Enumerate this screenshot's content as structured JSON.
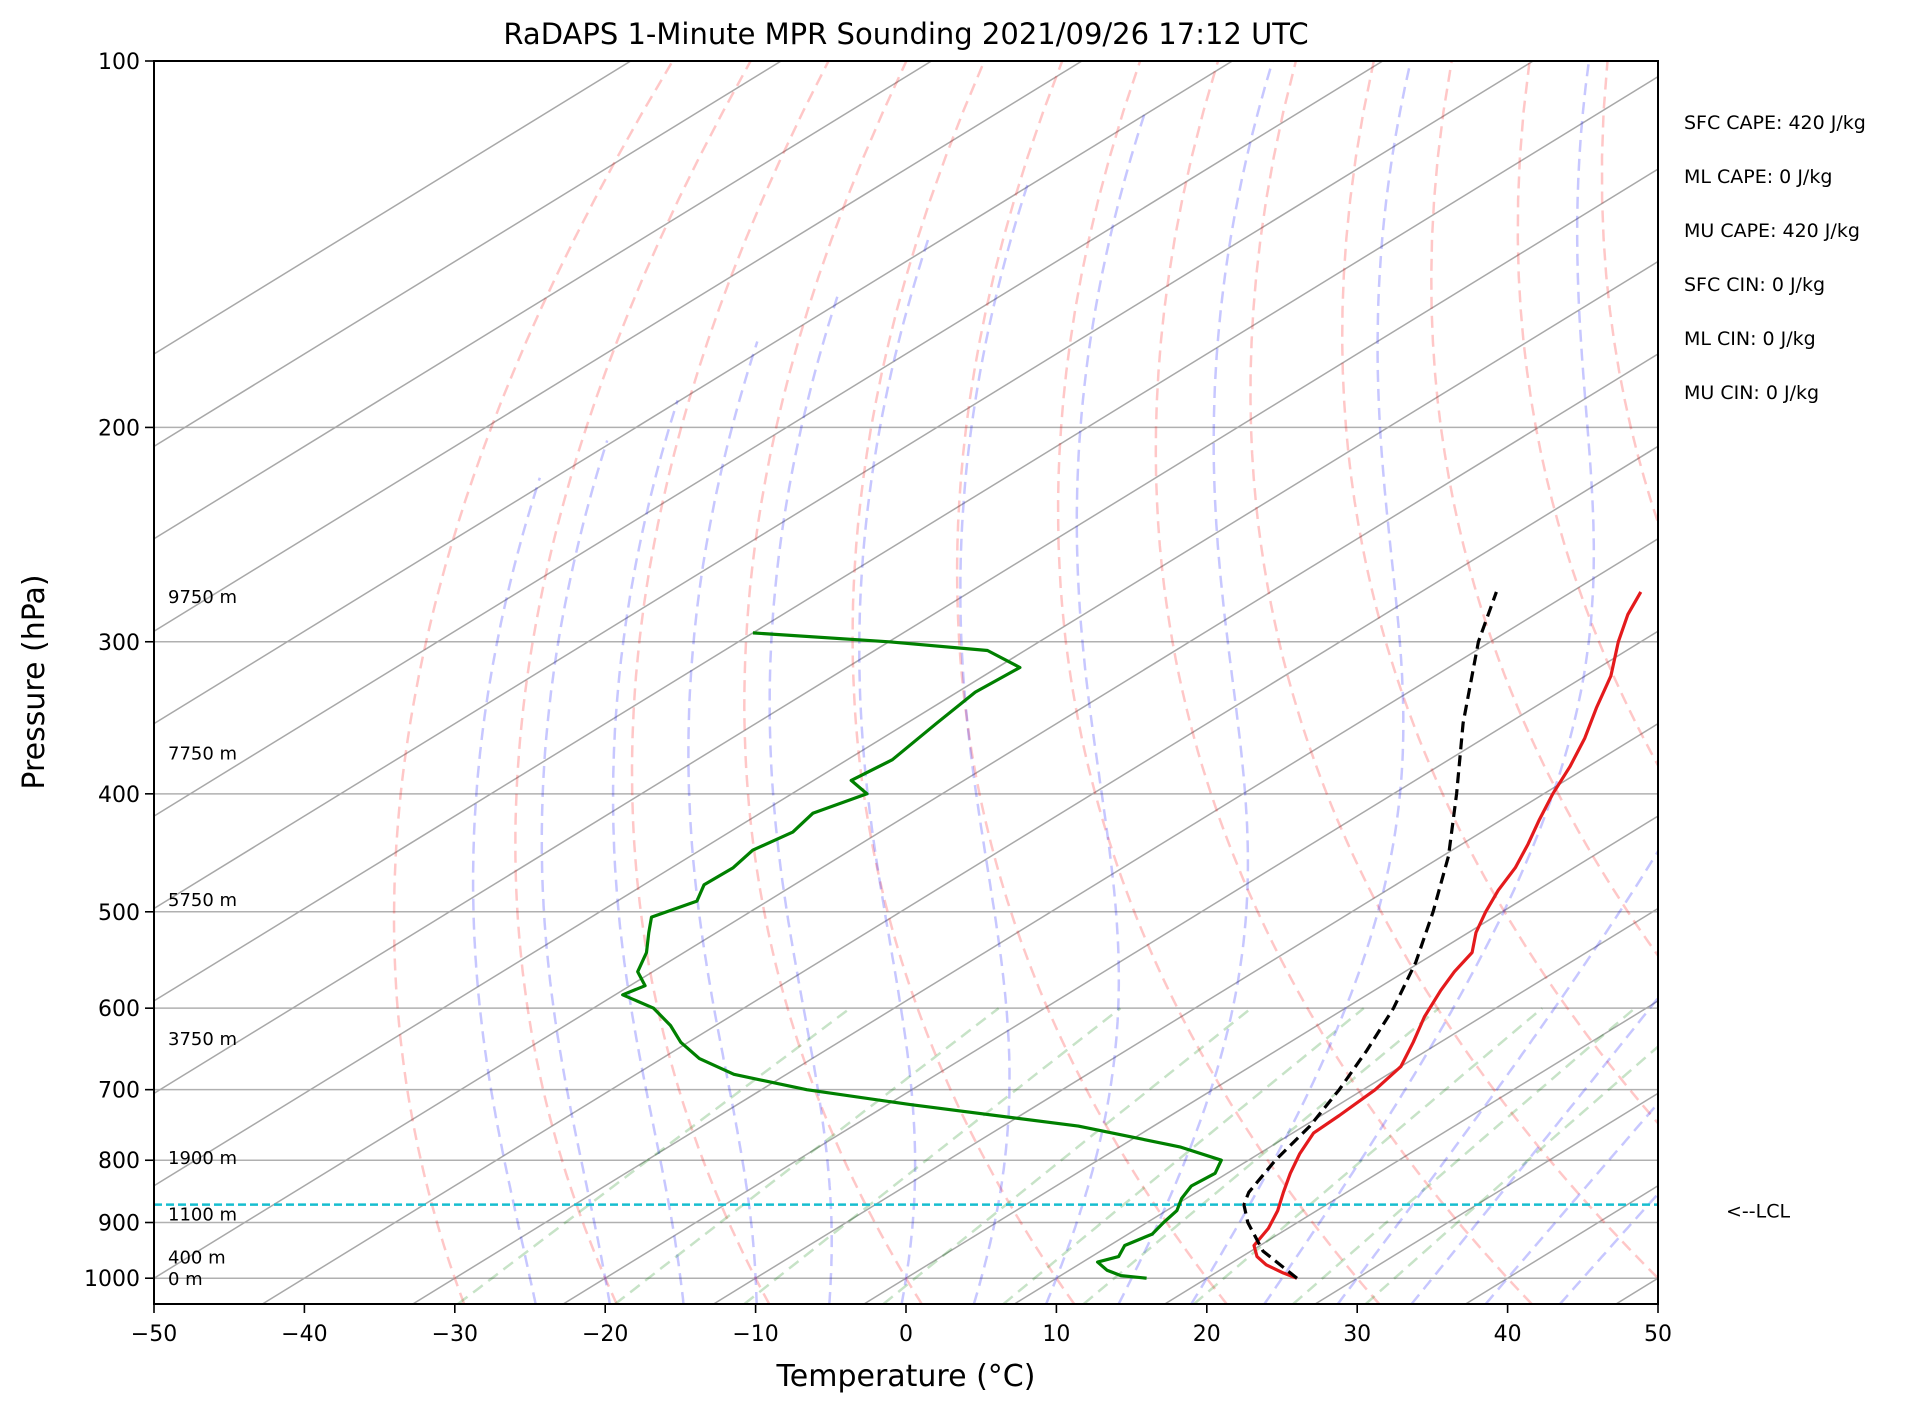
{
  "chart_data": {
    "type": "line",
    "title": "RaDAPS 1-Minute MPR Sounding 2021/09/26 17:12 UTC",
    "xlabel": "Temperature (°C)",
    "ylabel": "Pressure (hPa)",
    "xlim": [
      -50,
      50
    ],
    "ylim": [
      1050,
      100
    ],
    "y_scale": "log",
    "skew": "skew-T (isotherms slanted)",
    "grid": true,
    "x_ticks": [
      "−50",
      "−40",
      "−30",
      "−20",
      "−10",
      "0",
      "10",
      "20",
      "30",
      "40",
      "50"
    ],
    "x_tick_values": [
      -50,
      -40,
      -30,
      -20,
      -10,
      0,
      10,
      20,
      30,
      40,
      50
    ],
    "y_ticks": [
      "100",
      "200",
      "300",
      "400",
      "500",
      "600",
      "700",
      "800",
      "900",
      "1000"
    ],
    "y_tick_values": [
      100,
      200,
      300,
      400,
      500,
      600,
      700,
      800,
      900,
      1000
    ],
    "height_labels": [
      {
        "text": "9750 m",
        "p": 275
      },
      {
        "text": "7750 m",
        "p": 370
      },
      {
        "text": "5750 m",
        "p": 488
      },
      {
        "text": "3750 m",
        "p": 635
      },
      {
        "text": "1900 m",
        "p": 795
      },
      {
        "text": "1100 m",
        "p": 885
      },
      {
        "text": "400 m",
        "p": 960
      },
      {
        "text": "0 m",
        "p": 1000
      }
    ],
    "lcl": {
      "p": 870,
      "label": "<--LCL",
      "color": "#17becf"
    },
    "indices": [
      "SFC CAPE: 420 J/kg",
      "ML CAPE: 0 J/kg",
      "MU CAPE: 420 J/kg",
      "SFC CIN: 0 J/kg",
      "ML CIN: 0 J/kg",
      "MU CIN: 0 J/kg"
    ],
    "series": [
      {
        "role": "temperature",
        "color": "#e41a1c",
        "style": "solid",
        "points": [
          [
            1000,
            26.0
          ],
          [
            990,
            24.5
          ],
          [
            975,
            22.5
          ],
          [
            960,
            21.0
          ],
          [
            940,
            19.6
          ],
          [
            910,
            18.7
          ],
          [
            880,
            17.4
          ],
          [
            850,
            15.8
          ],
          [
            820,
            14.2
          ],
          [
            790,
            12.7
          ],
          [
            760,
            11.4
          ],
          [
            735,
            11.2
          ],
          [
            700,
            10.8
          ],
          [
            670,
            10.0
          ],
          [
            640,
            8.2
          ],
          [
            610,
            6.2
          ],
          [
            580,
            4.4
          ],
          [
            560,
            3.3
          ],
          [
            540,
            2.4
          ],
          [
            520,
            0.5
          ],
          [
            500,
            -1.1
          ],
          [
            480,
            -2.6
          ],
          [
            460,
            -3.9
          ],
          [
            440,
            -5.6
          ],
          [
            420,
            -7.5
          ],
          [
            400,
            -9.4
          ],
          [
            380,
            -11.2
          ],
          [
            360,
            -13.3
          ],
          [
            340,
            -15.8
          ],
          [
            320,
            -18.3
          ],
          [
            300,
            -21.5
          ],
          [
            285,
            -23.8
          ],
          [
            273,
            -25.4
          ]
        ]
      },
      {
        "role": "dewpoint",
        "color": "#008000",
        "style": "solid",
        "points": [
          [
            1000,
            16.0
          ],
          [
            995,
            14.0
          ],
          [
            985,
            12.5
          ],
          [
            970,
            11.0
          ],
          [
            960,
            11.8
          ],
          [
            940,
            11.0
          ],
          [
            920,
            11.6
          ],
          [
            900,
            11.1
          ],
          [
            880,
            10.7
          ],
          [
            860,
            9.7
          ],
          [
            840,
            9.0
          ],
          [
            820,
            9.2
          ],
          [
            800,
            8.2
          ],
          [
            780,
            4.0
          ],
          [
            750,
            -5.0
          ],
          [
            720,
            -18.5
          ],
          [
            700,
            -27.0
          ],
          [
            680,
            -33.5
          ],
          [
            660,
            -37.5
          ],
          [
            640,
            -40.5
          ],
          [
            620,
            -43.0
          ],
          [
            600,
            -46.0
          ],
          [
            585,
            -49.5
          ],
          [
            575,
            -49.0
          ],
          [
            560,
            -51.0
          ],
          [
            540,
            -52.5
          ],
          [
            520,
            -54.5
          ],
          [
            505,
            -56.0
          ],
          [
            490,
            -54.7
          ],
          [
            475,
            -56.0
          ],
          [
            460,
            -55.9
          ],
          [
            445,
            -56.5
          ],
          [
            430,
            -55.8
          ],
          [
            415,
            -56.5
          ],
          [
            400,
            -55.0
          ],
          [
            390,
            -57.5
          ],
          [
            375,
            -57.0
          ],
          [
            350,
            -58.0
          ],
          [
            330,
            -58.8
          ],
          [
            315,
            -58.5
          ],
          [
            305,
            -62.5
          ],
          [
            300,
            -70.0
          ],
          [
            295,
            -80.0
          ]
        ]
      },
      {
        "role": "parcel",
        "color": "#000000",
        "style": "dashed",
        "points": [
          [
            1000,
            26.0
          ],
          [
            950,
            20.8
          ],
          [
            900,
            16.7
          ],
          [
            870,
            14.5
          ],
          [
            850,
            13.5
          ],
          [
            800,
            11.8
          ],
          [
            750,
            10.4
          ],
          [
            700,
            8.4
          ],
          [
            650,
            6.0
          ],
          [
            600,
            3.2
          ],
          [
            550,
            -0.3
          ],
          [
            500,
            -4.6
          ],
          [
            450,
            -9.6
          ],
          [
            400,
            -15.8
          ],
          [
            350,
            -23.0
          ],
          [
            300,
            -30.8
          ],
          [
            273,
            -35.0
          ]
        ]
      }
    ]
  }
}
